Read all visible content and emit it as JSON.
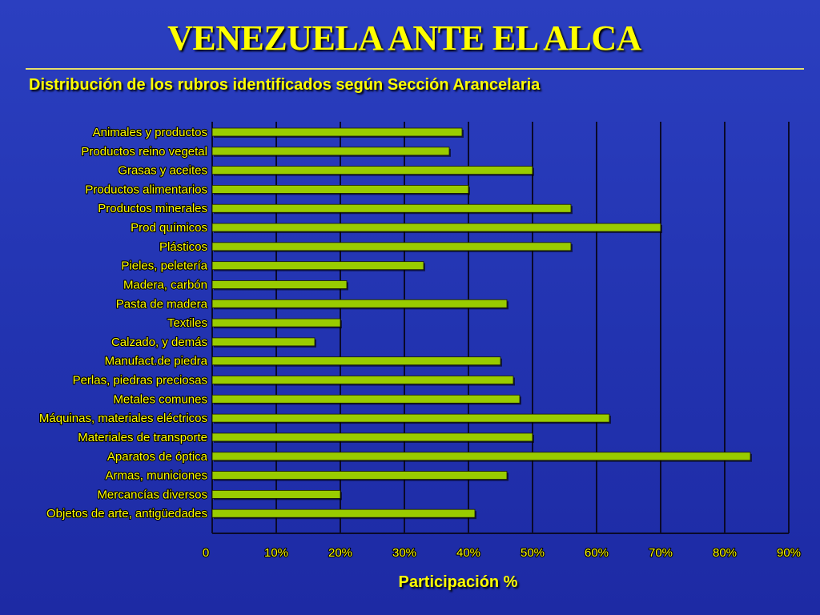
{
  "title": "VENEZUELA ANTE EL ALCA",
  "subtitle": "Distribución de los rubros identificados según Sección Arancelaria",
  "colors": {
    "bar": "#99cc00",
    "text": "#ffff00",
    "grid": "#0a0a2a",
    "background": "#2233b0"
  },
  "chart_data": {
    "type": "bar",
    "orientation": "horizontal",
    "categories": [
      "Animales y productos",
      "Productos reino vegetal",
      "Grasas y aceites",
      "Productos alimentarios",
      "Productos minerales",
      "Prod químicos",
      "Plásticos",
      "Pieles, peletería",
      "Madera, carbón",
      "Pasta de madera",
      "Textiles",
      "Calzado, y demás",
      "Manufact.de piedra",
      "Perlas, piedras preciosas",
      "Metales comunes",
      "Máquinas, materiales eléctricos",
      "Materiales de transporte",
      "Aparatos de óptica",
      "Armas, municiones",
      "Mercancías diversos",
      "Objetos de arte, antigüedades"
    ],
    "values": [
      39,
      37,
      50,
      40,
      56,
      70,
      56,
      33,
      21,
      46,
      20,
      16,
      45,
      47,
      48,
      62,
      50,
      84,
      46,
      20,
      41
    ],
    "xlabel": "Participación %",
    "xticks": [
      "0",
      "10%",
      "20%",
      "30%",
      "40%",
      "50%",
      "60%",
      "70%",
      "80%",
      "90%"
    ],
    "xlim": [
      0,
      90
    ],
    "grid": true,
    "legend": false
  }
}
